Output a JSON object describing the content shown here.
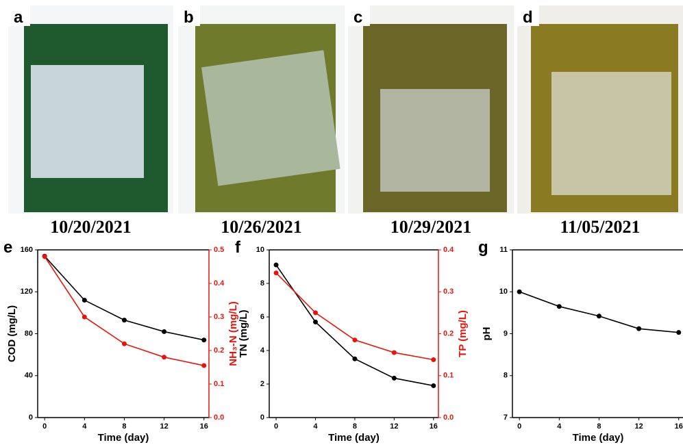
{
  "panels": [
    {
      "label": "a",
      "date": "10/20/2021"
    },
    {
      "label": "b",
      "date": "10/26/2021"
    },
    {
      "label": "c",
      "date": "10/29/2021"
    },
    {
      "label": "d",
      "date": "11/05/2021"
    }
  ],
  "chart_data": [
    {
      "type": "line",
      "panel": "e",
      "x": [
        0,
        4,
        8,
        12,
        16
      ],
      "xlabel": "Time (day)",
      "ylabel": "COD (mg/L)",
      "y2label": "NH₃-N (mg/L)",
      "xlim": [
        -0.7,
        16.5
      ],
      "xticks": [
        0,
        4,
        8,
        12,
        16
      ],
      "ylim": [
        0,
        160
      ],
      "yticks": [
        0,
        40,
        80,
        120,
        160
      ],
      "y2lim": [
        0,
        0.5
      ],
      "y2ticks": [
        {
          "value": 0,
          "label": "0.0"
        },
        0.1,
        0.2,
        0.3,
        0.4,
        0.5
      ],
      "series": [
        {
          "color": "#000000",
          "values": [
            154,
            112,
            93,
            82,
            74
          ]
        },
        {
          "color": "#e8140c",
          "axis": "y2",
          "values": [
            0.48,
            0.3,
            0.22,
            0.18,
            0.155
          ]
        }
      ]
    },
    {
      "type": "line",
      "panel": "f",
      "x": [
        0,
        4,
        8,
        12,
        16
      ],
      "xlabel": "Time (day)",
      "ylabel": "TN (mg/L)",
      "y2label": "TP (mg/L)",
      "xlim": [
        -0.7,
        16.5
      ],
      "xticks": [
        0,
        4,
        8,
        12,
        16
      ],
      "ylim": [
        0,
        10
      ],
      "yticks": [
        0,
        2,
        4,
        6,
        8,
        10
      ],
      "y2lim": [
        0,
        0.4
      ],
      "y2ticks": [
        {
          "value": 0,
          "label": "0.0"
        },
        0.1,
        0.2,
        0.3,
        0.4
      ],
      "series": [
        {
          "color": "#000000",
          "values": [
            9.1,
            5.7,
            3.5,
            2.35,
            1.9
          ]
        },
        {
          "color": "#e8140c",
          "axis": "y2",
          "values": [
            0.345,
            0.25,
            0.185,
            0.155,
            0.138
          ]
        }
      ]
    },
    {
      "type": "line",
      "panel": "g",
      "x": [
        0,
        4,
        8,
        12,
        16
      ],
      "xlabel": "Time (day)",
      "ylabel": "pH",
      "xlim": [
        -0.7,
        16.5
      ],
      "xticks": [
        0,
        4,
        8,
        12,
        16
      ],
      "ylim": [
        7,
        11
      ],
      "yticks": [
        7,
        8,
        9,
        10,
        11
      ],
      "series": [
        {
          "color": "#000000",
          "values": [
            10,
            9.65,
            9.42,
            9.12,
            9.03
          ]
        }
      ]
    }
  ]
}
